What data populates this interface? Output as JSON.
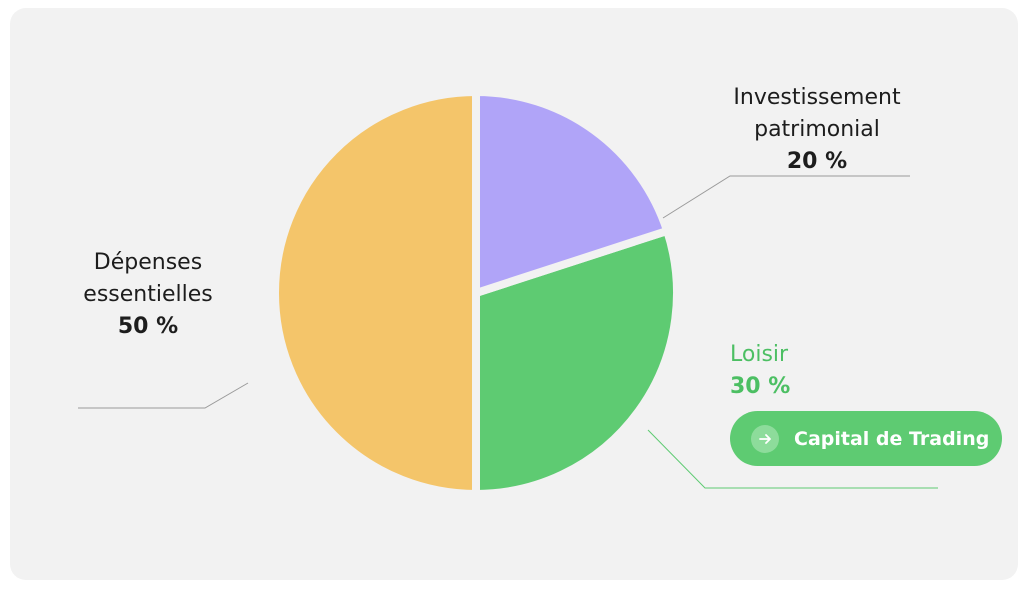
{
  "chart_data": {
    "type": "pie",
    "categories": [
      "Investissement patrimonial",
      "Loisir",
      "Dépenses essentielles"
    ],
    "values": [
      20,
      30,
      50
    ],
    "value_labels": [
      "20 %",
      "30 %",
      "50 %"
    ],
    "colors": [
      "#b0a4f8",
      "#5ecb72",
      "#f4c56a"
    ]
  },
  "button": {
    "label": "Capital de Trading"
  }
}
